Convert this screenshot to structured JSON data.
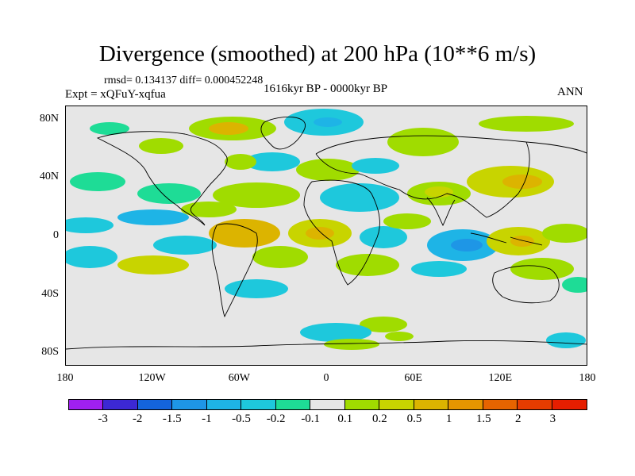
{
  "map": {
    "title": "Divergence (smoothed) at 200 hPa (10**6 m/s)",
    "stats_line": "rmsd= 0.134137 diff= 0.000452248",
    "experiment_line": "Expt = xQFuY-xqfua",
    "period_line": "1616kyr BP - 0000kyr BP",
    "season": "ANN",
    "lat_labels": [
      "80N",
      "40N",
      "0",
      "40S",
      "80S"
    ],
    "lon_labels": [
      "180",
      "120W",
      "60W",
      "0",
      "60E",
      "120E",
      "180"
    ],
    "lat_values": [
      80,
      40,
      0,
      -40,
      -80
    ],
    "lon_values": [
      -180,
      -120,
      -60,
      0,
      60,
      120,
      180
    ]
  },
  "colorbar": {
    "colors": [
      "#a020f0",
      "#3c28d4",
      "#1464dc",
      "#1e96e6",
      "#1eb4e6",
      "#1ec8dc",
      "#1edc96",
      "#e6e6e6",
      "#a0dc00",
      "#c8d400",
      "#dcb400",
      "#e69600",
      "#e66400",
      "#e63c00",
      "#e61e00"
    ],
    "labels": [
      "-3",
      "-2",
      "-1.5",
      "-1",
      "-0.5",
      "-0.2",
      "-0.1",
      "0.1",
      "0.2",
      "0.5",
      "1",
      "1.5",
      "2",
      "3"
    ]
  }
}
